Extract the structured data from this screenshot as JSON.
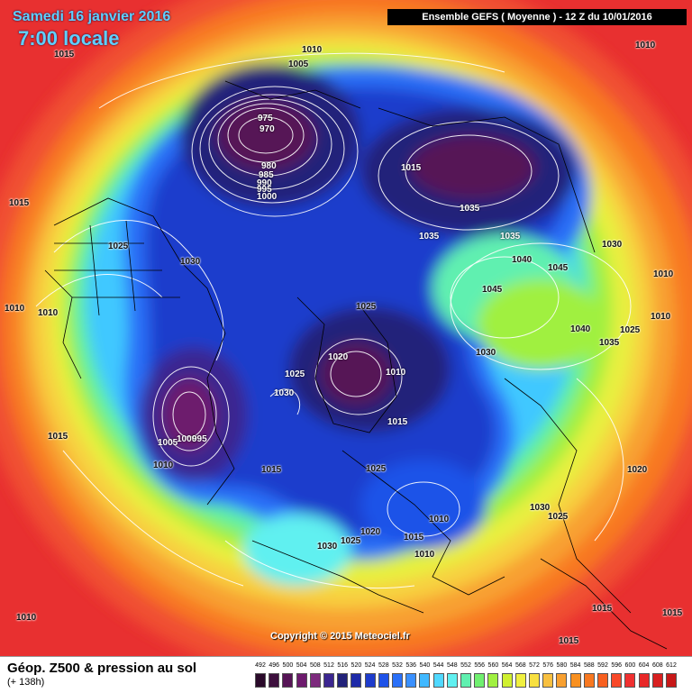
{
  "header": {
    "date": "Samedi 16 janvier 2016",
    "time": "7:00 locale",
    "run": "Ensemble GEFS  ( Moyenne )  -  12 Z du 10/01/2016"
  },
  "copyright": "Copyright © 2015 Meteociel.fr",
  "footer": {
    "title": "Géop. Z500 & pression au sol",
    "subtitle": "(+ 138h)"
  },
  "legend": {
    "values": [
      "492",
      "496",
      "500",
      "504",
      "508",
      "512",
      "516",
      "520",
      "524",
      "528",
      "532",
      "536",
      "540",
      "544",
      "548",
      "552",
      "556",
      "560",
      "564",
      "568",
      "572",
      "576",
      "580",
      "584",
      "588",
      "592",
      "596",
      "600",
      "604",
      "608",
      "612"
    ],
    "colors": [
      "#2a0a2a",
      "#3d0f3d",
      "#561456",
      "#6d1a6d",
      "#7d2a7d",
      "#3b2690",
      "#22227a",
      "#1e2aa8",
      "#1e3ccc",
      "#1e52e8",
      "#2a70f8",
      "#3a90ff",
      "#40b8ff",
      "#50d8ff",
      "#60f0f0",
      "#60f0b0",
      "#70f070",
      "#a0f040",
      "#d0f030",
      "#f0f040",
      "#f8e040",
      "#f8c040",
      "#f8a030",
      "#f89020",
      "#f87820",
      "#f86020",
      "#f84828",
      "#f03030",
      "#e82828",
      "#d82020",
      "#c81818"
    ]
  },
  "pressure_labels": [
    {
      "text": "1010"
    },
    {
      "text": "1015"
    },
    {
      "text": "1005"
    },
    {
      "text": "975"
    },
    {
      "text": "970"
    },
    {
      "text": "980"
    },
    {
      "text": "985"
    },
    {
      "text": "990"
    },
    {
      "text": "995"
    },
    {
      "text": "1000"
    },
    {
      "text": "1015"
    },
    {
      "text": "1035"
    },
    {
      "text": "1035"
    },
    {
      "text": "1035"
    },
    {
      "text": "1010"
    },
    {
      "text": "1015"
    },
    {
      "text": "1025"
    },
    {
      "text": "1030"
    },
    {
      "text": "1040"
    },
    {
      "text": "1045"
    },
    {
      "text": "1030"
    },
    {
      "text": "1010"
    },
    {
      "text": "1010"
    },
    {
      "text": "1010"
    },
    {
      "text": "1045"
    },
    {
      "text": "1025"
    },
    {
      "text": "1040"
    },
    {
      "text": "1035"
    },
    {
      "text": "1025"
    },
    {
      "text": "1010"
    },
    {
      "text": "1030"
    },
    {
      "text": "1020"
    },
    {
      "text": "1010"
    },
    {
      "text": "1025"
    },
    {
      "text": "1030"
    },
    {
      "text": "1015"
    },
    {
      "text": "1005"
    },
    {
      "text": "1000"
    },
    {
      "text": "995"
    },
    {
      "text": "1010"
    },
    {
      "text": "1015"
    },
    {
      "text": "1015"
    },
    {
      "text": "1025"
    },
    {
      "text": "1020"
    },
    {
      "text": "1030"
    },
    {
      "text": "1025"
    },
    {
      "text": "1010"
    },
    {
      "text": "1020"
    },
    {
      "text": "1015"
    },
    {
      "text": "1030"
    },
    {
      "text": "1025"
    },
    {
      "text": "1010"
    },
    {
      "text": "1015"
    },
    {
      "text": "1010"
    },
    {
      "text": "1015"
    },
    {
      "text": "1015"
    },
    {
      "text": "1015"
    }
  ]
}
